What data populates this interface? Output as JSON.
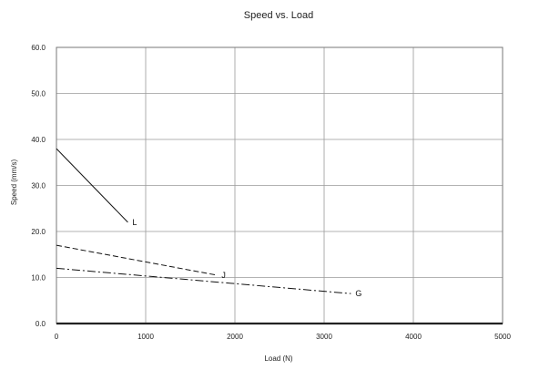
{
  "chart_data": {
    "type": "line",
    "title": "Speed vs. Load",
    "xlabel": "Load (N)",
    "ylabel": "Speed (mm/s)",
    "xlim": [
      0,
      5000
    ],
    "ylim": [
      0,
      60
    ],
    "x_ticks": [
      "0",
      "1000",
      "2000",
      "3000",
      "4000",
      "5000"
    ],
    "y_ticks": [
      "0.0",
      "10.0",
      "20.0",
      "30.0",
      "40.0",
      "50.0",
      "60.0"
    ],
    "grid": true,
    "series": [
      {
        "name": "L",
        "style": "solid",
        "points": [
          [
            0,
            38
          ],
          [
            800,
            22
          ]
        ]
      },
      {
        "name": "J",
        "style": "dashed",
        "points": [
          [
            0,
            17
          ],
          [
            1800,
            10.5
          ]
        ]
      },
      {
        "name": "G",
        "style": "dashdot",
        "points": [
          [
            0,
            12
          ],
          [
            3300,
            6.5
          ]
        ]
      }
    ]
  }
}
